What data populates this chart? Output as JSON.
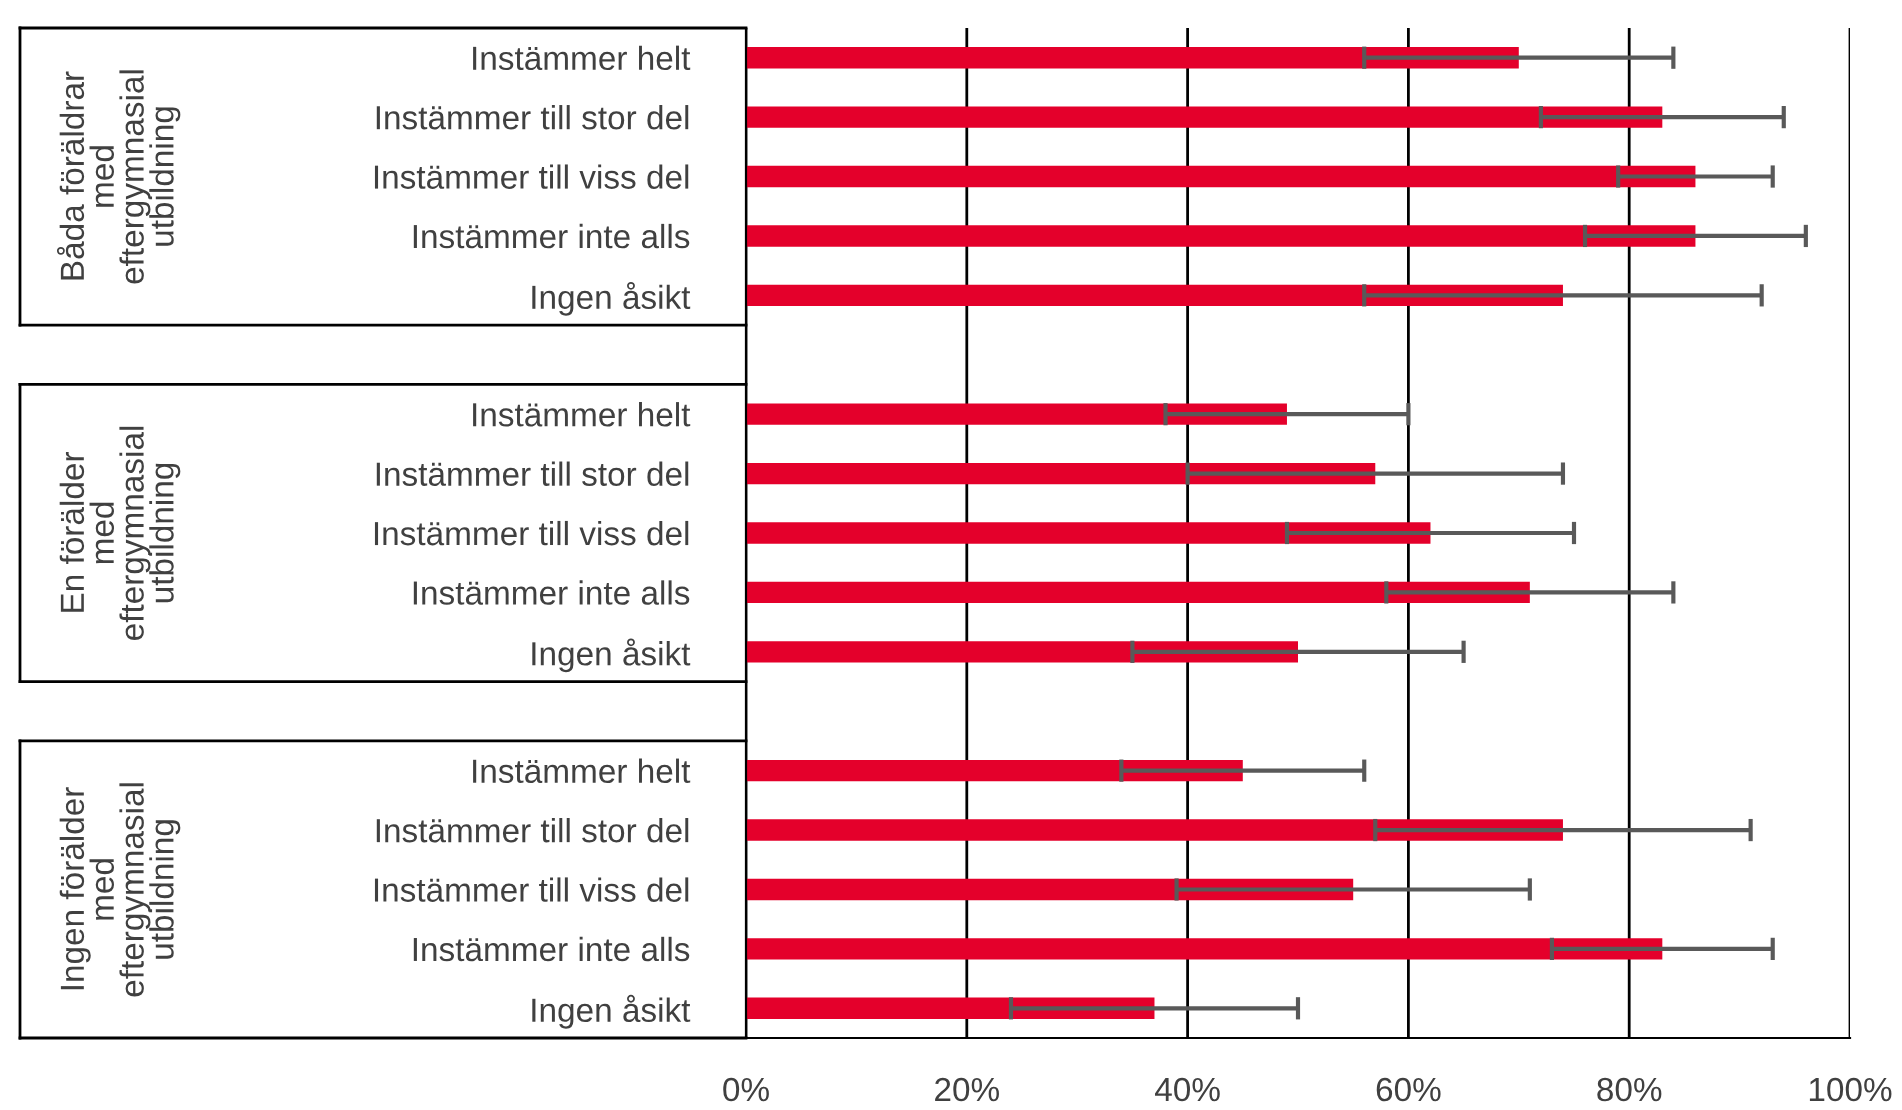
{
  "chart_data": {
    "type": "bar",
    "orientation": "horizontal",
    "categories": [
      "Instämmer helt",
      "Instämmer till stor del",
      "Instämmer till viss del",
      "Instämmer inte alls",
      "Ingen åsikt",
      null,
      "Instämmer helt",
      "Instämmer till stor del",
      "Instämmer till viss del",
      "Instämmer inte alls",
      "Ingen åsikt",
      null,
      "Instämmer helt",
      "Instämmer till stor del",
      "Instämmer till viss del",
      "Instämmer inte alls",
      "Ingen åsikt"
    ],
    "values": [
      70,
      83,
      86,
      86,
      74,
      null,
      49,
      57,
      62,
      71,
      50,
      null,
      45,
      74,
      55,
      83,
      37
    ],
    "errors": [
      14,
      11,
      7,
      10,
      18,
      null,
      11,
      17,
      13,
      13,
      15,
      null,
      11,
      17,
      16,
      10,
      13
    ],
    "color": "#e4002b",
    "xlim": [
      0,
      100
    ],
    "xticks": [
      {
        "value": 0,
        "label": "0%"
      },
      {
        "value": 20,
        "label": "20%"
      },
      {
        "value": 40,
        "label": "40%"
      },
      {
        "value": 60,
        "label": "60%"
      },
      {
        "value": 80,
        "label": "80%"
      },
      {
        "value": 100,
        "label": "100%"
      }
    ],
    "grid": "x",
    "annotations": [
      "Båda föräldrar\nmed\neftergymnasial\nutbildning",
      "En förälder\nmed\neftergymnasial\nutbildning",
      "Ingen förälder\nmed\neftergymnasial\nutbildning"
    ]
  }
}
